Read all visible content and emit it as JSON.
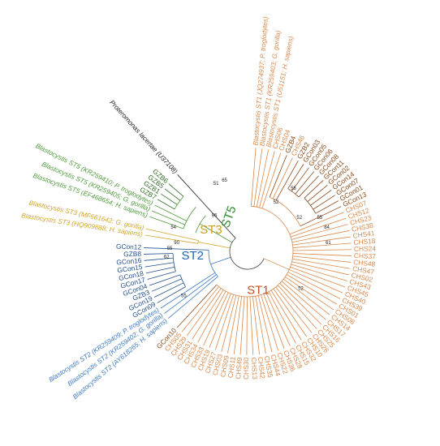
{
  "colors": {
    "ST1": "#d9884b",
    "ST1_dark": "#8b4a1a",
    "ST1_label": "#c0522a",
    "ST2": "#3b79c2",
    "ST2_dark": "#1f4e8c",
    "ST2_label": "#1d63b8",
    "ST3": "#d1a52a",
    "ST3_label": "#c9a01c",
    "ST5": "#4e9a3a",
    "ST5_dark": "#2e6b22",
    "ST5_label": "#2f8a2a",
    "outgroup": "#222222"
  },
  "tree": {
    "clades": [
      {
        "key": "ST1",
        "label": "ST1"
      },
      {
        "key": "ST2",
        "label": "ST2"
      },
      {
        "key": "ST3",
        "label": "ST3"
      },
      {
        "key": "ST5",
        "label": "ST5"
      }
    ],
    "bootstrap": [
      "52",
      "52",
      "52",
      "56",
      "55",
      "84",
      "61",
      "95",
      "51",
      "65",
      "54",
      "90",
      "55",
      "62",
      "55"
    ],
    "leaves": [
      {
        "text": "Blastocystis ST1 (JQ274937; P. troglodytes)",
        "group": "ST1",
        "shade": "ref",
        "italic": true
      },
      {
        "text": "Blastocystis ST1 (KR259403; G. gorilla)",
        "group": "ST1",
        "shade": "ref",
        "italic": true
      },
      {
        "text": "Blastocystis ST1 (U51151; H. sapiens)",
        "group": "ST1",
        "shade": "ref",
        "italic": true
      },
      {
        "text": "CHS06",
        "group": "ST1",
        "shade": "light"
      },
      {
        "text": "CHS04",
        "group": "ST1",
        "shade": "light"
      },
      {
        "text": "GZB4",
        "group": "ST1",
        "shade": "dark"
      },
      {
        "text": "CHS46",
        "group": "ST1",
        "shade": "light"
      },
      {
        "text": "GZB2",
        "group": "ST1",
        "shade": "dark"
      },
      {
        "text": "GCon03",
        "group": "ST1",
        "shade": "dark"
      },
      {
        "text": "GCon05",
        "group": "ST1",
        "shade": "dark"
      },
      {
        "text": "GCon06",
        "group": "ST1",
        "shade": "dark"
      },
      {
        "text": "GCon08",
        "group": "ST1",
        "shade": "dark"
      },
      {
        "text": "GCon11",
        "group": "ST1",
        "shade": "dark"
      },
      {
        "text": "GCon02",
        "group": "ST1",
        "shade": "dark"
      },
      {
        "text": "GCon14",
        "group": "ST1",
        "shade": "dark"
      },
      {
        "text": "GCon07",
        "group": "ST1",
        "shade": "dark"
      },
      {
        "text": "GCon01",
        "group": "ST1",
        "shade": "dark"
      },
      {
        "text": "GCon13",
        "group": "ST1",
        "shade": "dark"
      },
      {
        "text": "CHS07",
        "group": "ST1",
        "shade": "light"
      },
      {
        "text": "CHS12",
        "group": "ST1",
        "shade": "light"
      },
      {
        "text": "CHS23",
        "group": "ST1",
        "shade": "light"
      },
      {
        "text": "CHS38",
        "group": "ST1",
        "shade": "light"
      },
      {
        "text": "CHS41",
        "group": "ST1",
        "shade": "light"
      },
      {
        "text": "CHS18",
        "group": "ST1",
        "shade": "light"
      },
      {
        "text": "CHS24",
        "group": "ST1",
        "shade": "light"
      },
      {
        "text": "CHS37",
        "group": "ST1",
        "shade": "light"
      },
      {
        "text": "CHS48",
        "group": "ST1",
        "shade": "light"
      },
      {
        "text": "CHS47",
        "group": "ST1",
        "shade": "light"
      },
      {
        "text": "CHS02",
        "group": "ST1",
        "shade": "light"
      },
      {
        "text": "CHS43",
        "group": "ST1",
        "shade": "light"
      },
      {
        "text": "CHS45",
        "group": "ST1",
        "shade": "light"
      },
      {
        "text": "CHS40",
        "group": "ST1",
        "shade": "light"
      },
      {
        "text": "CHS39",
        "group": "ST1",
        "shade": "light"
      },
      {
        "text": "CHS01",
        "group": "ST1",
        "shade": "light"
      },
      {
        "text": "CHS08",
        "group": "ST1",
        "shade": "light"
      },
      {
        "text": "CHS14",
        "group": "ST1",
        "shade": "light"
      },
      {
        "text": "CHS17",
        "group": "ST1",
        "shade": "light"
      },
      {
        "text": "CHS16",
        "group": "ST1",
        "shade": "light"
      },
      {
        "text": "CHS25",
        "group": "ST1",
        "shade": "light"
      },
      {
        "text": "CHS26",
        "group": "ST1",
        "shade": "light"
      },
      {
        "text": "CHS10",
        "group": "ST1",
        "shade": "light"
      },
      {
        "text": "CHS32",
        "group": "ST1",
        "shade": "light"
      },
      {
        "text": "CHS15",
        "group": "ST1",
        "shade": "light"
      },
      {
        "text": "CHS28",
        "group": "ST1",
        "shade": "light"
      },
      {
        "text": "CHS36",
        "group": "ST1",
        "shade": "light"
      },
      {
        "text": "CHS22",
        "group": "ST1",
        "shade": "light"
      },
      {
        "text": "CHS44",
        "group": "ST1",
        "shade": "light"
      },
      {
        "text": "CHS35",
        "group": "ST1",
        "shade": "light"
      },
      {
        "text": "CHS42",
        "group": "ST1",
        "shade": "light"
      },
      {
        "text": "CHS13",
        "group": "ST1",
        "shade": "light"
      },
      {
        "text": "CHS30",
        "group": "ST1",
        "shade": "light"
      },
      {
        "text": "CHS49",
        "group": "ST1",
        "shade": "light"
      },
      {
        "text": "CHS11",
        "group": "ST1",
        "shade": "light"
      },
      {
        "text": "CHS09",
        "group": "ST1",
        "shade": "light"
      },
      {
        "text": "CHS03",
        "group": "ST1",
        "shade": "light"
      },
      {
        "text": "CHS27",
        "group": "ST1",
        "shade": "light"
      },
      {
        "text": "CHS19",
        "group": "ST1",
        "shade": "light"
      },
      {
        "text": "CHS33",
        "group": "ST1",
        "shade": "light"
      },
      {
        "text": "CHS34",
        "group": "ST1",
        "shade": "light"
      },
      {
        "text": "CHS31",
        "group": "ST1",
        "shade": "light"
      },
      {
        "text": "CHS29",
        "group": "ST1",
        "shade": "light"
      },
      {
        "text": "CHS05",
        "group": "ST1",
        "shade": "light"
      },
      {
        "text": "GCon10",
        "group": "ST1",
        "shade": "dark"
      },
      {
        "text": "Blastocystis ST2 (AY618265; H. sapiens)",
        "group": "ST2",
        "shade": "ref",
        "italic": true
      },
      {
        "text": "Blastocystis ST2 (KR259402; G. gorilla)",
        "group": "ST2",
        "shade": "ref",
        "italic": true
      },
      {
        "text": "Blastocystis ST2 (KR259409; P. troglodytes)",
        "group": "ST2",
        "shade": "ref",
        "italic": true
      },
      {
        "text": "GCon09",
        "group": "ST2",
        "shade": "dark"
      },
      {
        "text": "GCon19",
        "group": "ST2",
        "shade": "dark"
      },
      {
        "text": "GZB3",
        "group": "ST2",
        "shade": "dark"
      },
      {
        "text": "GCon04",
        "group": "ST2",
        "shade": "dark"
      },
      {
        "text": "GCon17",
        "group": "ST2",
        "shade": "dark"
      },
      {
        "text": "GCon18",
        "group": "ST2",
        "shade": "dark"
      },
      {
        "text": "GCon15",
        "group": "ST2",
        "shade": "dark"
      },
      {
        "text": "GCon16",
        "group": "ST2",
        "shade": "dark"
      },
      {
        "text": "GZB8",
        "group": "ST2",
        "shade": "dark"
      },
      {
        "text": "GCon12",
        "group": "ST2",
        "shade": "dark"
      },
      {
        "text": "Blastocystis ST3 (HQ909888; H. sapiens)",
        "group": "ST3",
        "shade": "ref",
        "italic": true
      },
      {
        "text": "Blastocystis ST3 (MF661642; G. gorilla)",
        "group": "ST3",
        "shade": "ref",
        "italic": true
      },
      {
        "text": "Blastocystis ST5 (EF468654; H. sapiens)",
        "group": "ST5",
        "shade": "ref",
        "italic": true
      },
      {
        "text": "Blastocystis ST5 (KR259405; G. gorilla)",
        "group": "ST5",
        "shade": "ref",
        "italic": true
      },
      {
        "text": "Blastocystis ST5 (KR259410; P. troglodytes)",
        "group": "ST5",
        "shade": "ref",
        "italic": true
      },
      {
        "text": "GZB7",
        "group": "ST5",
        "shade": "dark"
      },
      {
        "text": "GZB1",
        "group": "ST5",
        "shade": "dark"
      },
      {
        "text": "GZB5",
        "group": "ST5",
        "shade": "dark"
      },
      {
        "text": "GZB6",
        "group": "ST5",
        "shade": "dark"
      },
      {
        "text": "Proteromonas lacertae (U37108)",
        "group": "outgroup",
        "shade": "dark",
        "italic": true
      }
    ]
  }
}
